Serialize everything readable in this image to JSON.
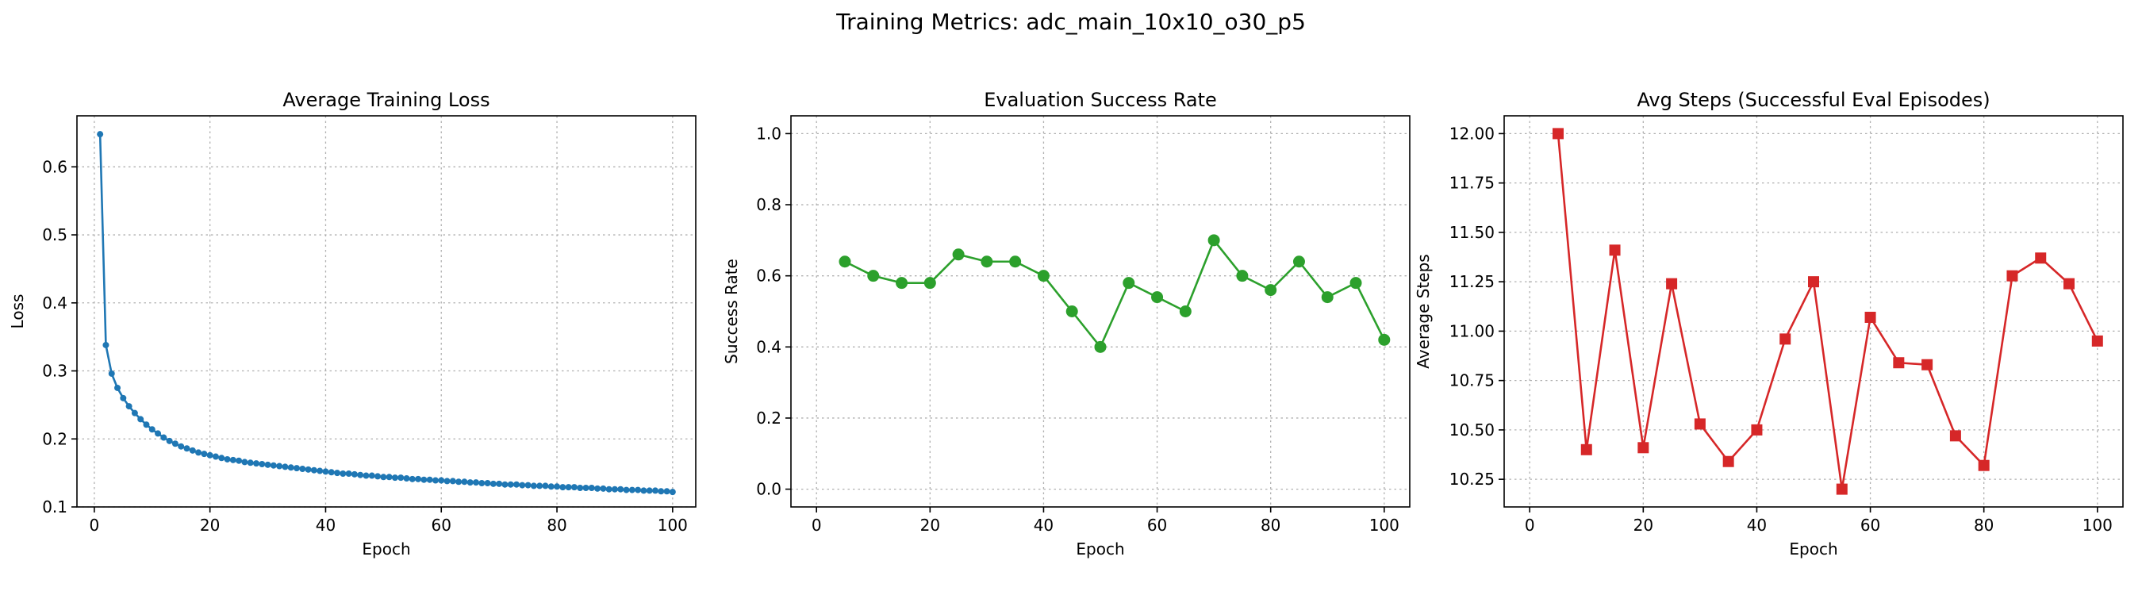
{
  "figure": {
    "title": "Training Metrics: adc_main_10x10_o30_p5"
  },
  "chart_data": [
    {
      "type": "line",
      "title": "Average Training Loss",
      "xlabel": "Epoch",
      "ylabel": "Loss",
      "xlim": [
        -3,
        104
      ],
      "ylim": [
        0.1,
        0.675
      ],
      "xticks": [
        0,
        20,
        40,
        60,
        80,
        100
      ],
      "yticks": [
        0.1,
        0.2,
        0.3,
        0.4,
        0.5,
        0.6
      ],
      "grid": true,
      "marker": "circle",
      "color": "#1f77b4",
      "series": [
        {
          "x": [
            1,
            2,
            3,
            4,
            5,
            6,
            7,
            8,
            9,
            10,
            11,
            12,
            13,
            14,
            15,
            16,
            17,
            18,
            19,
            20,
            21,
            22,
            23,
            24,
            25,
            26,
            27,
            28,
            29,
            30,
            31,
            32,
            33,
            34,
            35,
            36,
            37,
            38,
            39,
            40,
            41,
            42,
            43,
            44,
            45,
            46,
            47,
            48,
            49,
            50,
            51,
            52,
            53,
            54,
            55,
            56,
            57,
            58,
            59,
            60,
            61,
            62,
            63,
            64,
            65,
            66,
            67,
            68,
            69,
            70,
            71,
            72,
            73,
            74,
            75,
            76,
            77,
            78,
            79,
            80,
            81,
            82,
            83,
            84,
            85,
            86,
            87,
            88,
            89,
            90,
            91,
            92,
            93,
            94,
            95,
            96,
            97,
            98,
            99,
            100
          ],
          "values": [
            0.648,
            0.338,
            0.296,
            0.275,
            0.26,
            0.248,
            0.238,
            0.229,
            0.221,
            0.214,
            0.208,
            0.202,
            0.197,
            0.193,
            0.189,
            0.186,
            0.183,
            0.18,
            0.178,
            0.176,
            0.174,
            0.172,
            0.17,
            0.169,
            0.168,
            0.166,
            0.165,
            0.164,
            0.163,
            0.162,
            0.161,
            0.16,
            0.159,
            0.158,
            0.157,
            0.156,
            0.155,
            0.154,
            0.153,
            0.152,
            0.151,
            0.15,
            0.149,
            0.149,
            0.148,
            0.147,
            0.146,
            0.146,
            0.145,
            0.144,
            0.144,
            0.143,
            0.143,
            0.142,
            0.141,
            0.141,
            0.14,
            0.14,
            0.139,
            0.139,
            0.138,
            0.138,
            0.137,
            0.137,
            0.136,
            0.136,
            0.135,
            0.135,
            0.134,
            0.134,
            0.133,
            0.133,
            0.133,
            0.132,
            0.132,
            0.131,
            0.131,
            0.131,
            0.13,
            0.13,
            0.129,
            0.129,
            0.129,
            0.128,
            0.128,
            0.128,
            0.127,
            0.127,
            0.126,
            0.126,
            0.126,
            0.125,
            0.125,
            0.125,
            0.124,
            0.124,
            0.124,
            0.123,
            0.123,
            0.122
          ]
        }
      ]
    },
    {
      "type": "line",
      "title": "Evaluation Success Rate",
      "xlabel": "Epoch",
      "ylabel": "Success Rate",
      "xlim": [
        -4.5,
        104.5
      ],
      "ylim": [
        -0.05,
        1.05
      ],
      "xticks": [
        0,
        20,
        40,
        60,
        80,
        100
      ],
      "yticks": [
        0.0,
        0.2,
        0.4,
        0.6,
        0.8,
        1.0
      ],
      "grid": true,
      "marker": "circle",
      "color": "#2ca02c",
      "series": [
        {
          "x": [
            5,
            10,
            15,
            20,
            25,
            30,
            35,
            40,
            45,
            50,
            55,
            60,
            65,
            70,
            75,
            80,
            85,
            90,
            95,
            100
          ],
          "values": [
            0.64,
            0.6,
            0.58,
            0.58,
            0.66,
            0.64,
            0.64,
            0.6,
            0.5,
            0.4,
            0.58,
            0.54,
            0.5,
            0.7,
            0.6,
            0.56,
            0.64,
            0.54,
            0.58,
            0.42
          ]
        }
      ]
    },
    {
      "type": "line",
      "title": "Avg Steps (Successful Eval Episodes)",
      "xlabel": "Epoch",
      "ylabel": "Average Steps",
      "xlim": [
        -4.5,
        104.5
      ],
      "ylim": [
        10.11,
        12.09
      ],
      "xticks": [
        0,
        20,
        40,
        60,
        80,
        100
      ],
      "yticks": [
        10.25,
        10.5,
        10.75,
        11.0,
        11.25,
        11.5,
        11.75,
        12.0
      ],
      "grid": true,
      "marker": "square",
      "color": "#d62728",
      "series": [
        {
          "x": [
            5,
            10,
            15,
            20,
            25,
            30,
            35,
            40,
            45,
            50,
            55,
            60,
            65,
            70,
            75,
            80,
            85,
            90,
            95,
            100
          ],
          "values": [
            12.0,
            10.4,
            11.41,
            10.41,
            11.24,
            10.53,
            10.34,
            10.5,
            10.96,
            11.25,
            10.2,
            11.07,
            10.84,
            10.83,
            10.47,
            10.32,
            11.28,
            11.37,
            11.24,
            10.95
          ]
        }
      ]
    }
  ]
}
